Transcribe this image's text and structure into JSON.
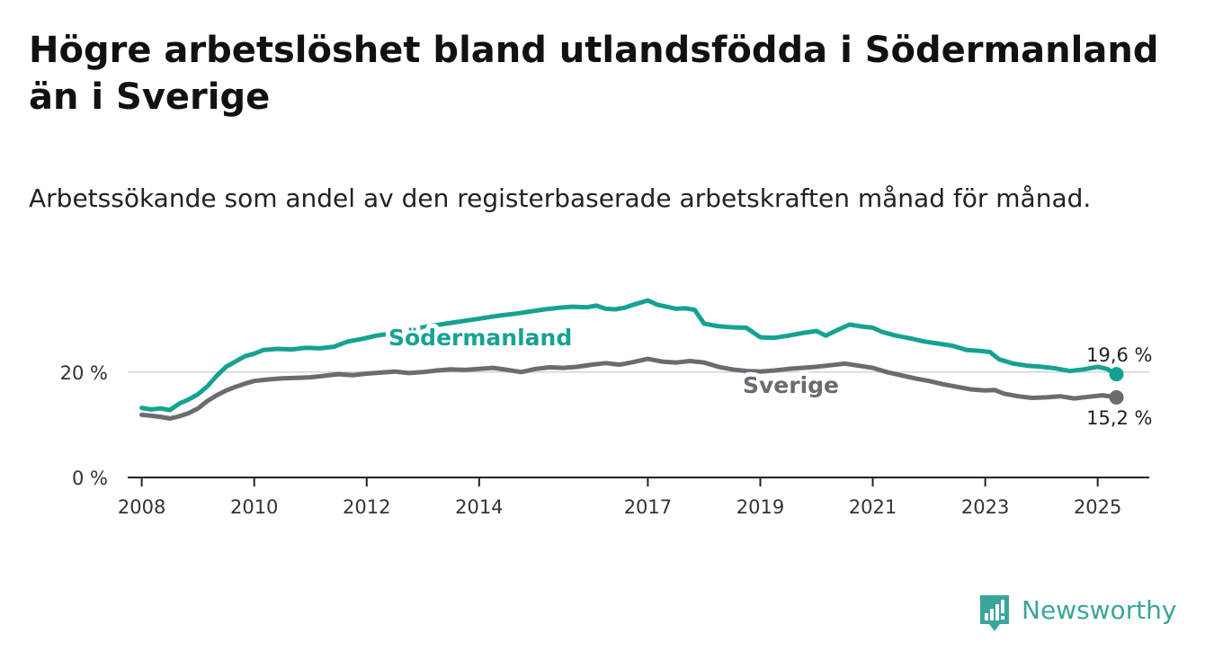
{
  "title": "Högre arbetslöshet bland utlandsfödda i Södermanland än i Sverige",
  "subtitle": "Arbetssökande som andel av den registerbaserade arbetskraften månad för månad.",
  "brand": {
    "name": "Newsworthy",
    "color": "#3aa59a",
    "icon": "bar-chart-exclamation-icon"
  },
  "chart_data": {
    "type": "line",
    "title": "",
    "xlabel": "",
    "ylabel": "",
    "x_ticks": [
      "2008",
      "2010",
      "2012",
      "2014",
      "2017",
      "2019",
      "2021",
      "2023",
      "2025"
    ],
    "y_ticks": [
      {
        "value": 0,
        "label": "0 %"
      },
      {
        "value": 20,
        "label": "20 %"
      }
    ],
    "ylim": [
      0,
      36
    ],
    "xlim": [
      "2007-10",
      "2025-12"
    ],
    "grid": "horizontal at 20 %",
    "series": [
      {
        "name": "Södermanland",
        "color": "#16a293",
        "end_label": "19,6 %",
        "points": [
          [
            "2008-01",
            13.2
          ],
          [
            "2008-03",
            12.9
          ],
          [
            "2008-05",
            13.1
          ],
          [
            "2008-07",
            12.8
          ],
          [
            "2008-09",
            14.0
          ],
          [
            "2008-11",
            14.8
          ],
          [
            "2009-01",
            15.8
          ],
          [
            "2009-03",
            17.3
          ],
          [
            "2009-05",
            19.3
          ],
          [
            "2009-07",
            21.0
          ],
          [
            "2009-09",
            22.0
          ],
          [
            "2009-11",
            23.0
          ],
          [
            "2010-01",
            23.5
          ],
          [
            "2010-03",
            24.2
          ],
          [
            "2010-06",
            24.4
          ],
          [
            "2010-09",
            24.3
          ],
          [
            "2010-12",
            24.6
          ],
          [
            "2011-03",
            24.5
          ],
          [
            "2011-06",
            24.8
          ],
          [
            "2011-09",
            25.8
          ],
          [
            "2011-12",
            26.3
          ],
          [
            "2012-03",
            26.9
          ],
          [
            "2012-06",
            27.3
          ],
          [
            "2012-09",
            27.8
          ],
          [
            "2012-12",
            28.3
          ],
          [
            "2013-03",
            28.8
          ],
          [
            "2013-06",
            29.2
          ],
          [
            "2013-09",
            29.6
          ],
          [
            "2013-12",
            30.0
          ],
          [
            "2014-03",
            30.4
          ],
          [
            "2014-06",
            30.8
          ],
          [
            "2014-09",
            31.1
          ],
          [
            "2014-12",
            31.5
          ],
          [
            "2015-03",
            31.9
          ],
          [
            "2015-06",
            32.2
          ],
          [
            "2015-09",
            32.4
          ],
          [
            "2015-12",
            32.3
          ],
          [
            "2016-02",
            32.6
          ],
          [
            "2016-04",
            32.0
          ],
          [
            "2016-06",
            31.9
          ],
          [
            "2016-08",
            32.2
          ],
          [
            "2016-10",
            32.8
          ],
          [
            "2017-01",
            33.6
          ],
          [
            "2017-03",
            32.8
          ],
          [
            "2017-05",
            32.4
          ],
          [
            "2017-07",
            32.0
          ],
          [
            "2017-09",
            32.1
          ],
          [
            "2017-11",
            31.8
          ],
          [
            "2018-01",
            29.2
          ],
          [
            "2018-04",
            28.7
          ],
          [
            "2018-07",
            28.5
          ],
          [
            "2018-10",
            28.4
          ],
          [
            "2019-01",
            26.6
          ],
          [
            "2019-04",
            26.5
          ],
          [
            "2019-07",
            26.9
          ],
          [
            "2019-10",
            27.4
          ],
          [
            "2020-01",
            27.8
          ],
          [
            "2020-03",
            26.9
          ],
          [
            "2020-05",
            27.8
          ],
          [
            "2020-08",
            29.0
          ],
          [
            "2020-11",
            28.6
          ],
          [
            "2021-01",
            28.4
          ],
          [
            "2021-03",
            27.6
          ],
          [
            "2021-06",
            26.9
          ],
          [
            "2021-09",
            26.4
          ],
          [
            "2021-12",
            25.8
          ],
          [
            "2022-03",
            25.4
          ],
          [
            "2022-06",
            25.0
          ],
          [
            "2022-09",
            24.2
          ],
          [
            "2022-12",
            24.0
          ],
          [
            "2023-02",
            23.8
          ],
          [
            "2023-04",
            22.4
          ],
          [
            "2023-07",
            21.6
          ],
          [
            "2023-10",
            21.2
          ],
          [
            "2024-01",
            21.0
          ],
          [
            "2024-04",
            20.7
          ],
          [
            "2024-07",
            20.2
          ],
          [
            "2024-10",
            20.5
          ],
          [
            "2025-01",
            21.0
          ],
          [
            "2025-03",
            20.6
          ],
          [
            "2025-05",
            19.6
          ]
        ]
      },
      {
        "name": "Sverige",
        "color": "#6b6b70",
        "end_label": "15,2 %",
        "points": [
          [
            "2008-01",
            11.9
          ],
          [
            "2008-03",
            11.7
          ],
          [
            "2008-05",
            11.5
          ],
          [
            "2008-07",
            11.2
          ],
          [
            "2008-09",
            11.6
          ],
          [
            "2008-11",
            12.2
          ],
          [
            "2009-01",
            13.1
          ],
          [
            "2009-03",
            14.5
          ],
          [
            "2009-05",
            15.6
          ],
          [
            "2009-07",
            16.5
          ],
          [
            "2009-09",
            17.2
          ],
          [
            "2009-11",
            17.8
          ],
          [
            "2010-01",
            18.3
          ],
          [
            "2010-04",
            18.6
          ],
          [
            "2010-07",
            18.8
          ],
          [
            "2010-10",
            18.9
          ],
          [
            "2011-01",
            19.0
          ],
          [
            "2011-04",
            19.3
          ],
          [
            "2011-07",
            19.6
          ],
          [
            "2011-10",
            19.4
          ],
          [
            "2012-01",
            19.7
          ],
          [
            "2012-04",
            19.9
          ],
          [
            "2012-07",
            20.1
          ],
          [
            "2012-10",
            19.8
          ],
          [
            "2013-01",
            20.0
          ],
          [
            "2013-04",
            20.3
          ],
          [
            "2013-07",
            20.5
          ],
          [
            "2013-10",
            20.4
          ],
          [
            "2014-01",
            20.6
          ],
          [
            "2014-04",
            20.8
          ],
          [
            "2014-07",
            20.4
          ],
          [
            "2014-10",
            20.0
          ],
          [
            "2015-01",
            20.6
          ],
          [
            "2015-04",
            20.9
          ],
          [
            "2015-07",
            20.8
          ],
          [
            "2015-10",
            21.0
          ],
          [
            "2016-01",
            21.4
          ],
          [
            "2016-04",
            21.7
          ],
          [
            "2016-07",
            21.4
          ],
          [
            "2016-10",
            21.9
          ],
          [
            "2017-01",
            22.5
          ],
          [
            "2017-04",
            22.0
          ],
          [
            "2017-07",
            21.8
          ],
          [
            "2017-10",
            22.1
          ],
          [
            "2018-01",
            21.8
          ],
          [
            "2018-04",
            21.0
          ],
          [
            "2018-07",
            20.5
          ],
          [
            "2018-10",
            20.2
          ],
          [
            "2019-01",
            20.1
          ],
          [
            "2019-04",
            20.3
          ],
          [
            "2019-07",
            20.6
          ],
          [
            "2019-10",
            20.8
          ],
          [
            "2020-01",
            21.0
          ],
          [
            "2020-04",
            21.3
          ],
          [
            "2020-07",
            21.6
          ],
          [
            "2020-10",
            21.2
          ],
          [
            "2021-01",
            20.8
          ],
          [
            "2021-04",
            20.0
          ],
          [
            "2021-07",
            19.4
          ],
          [
            "2021-10",
            18.8
          ],
          [
            "2022-01",
            18.3
          ],
          [
            "2022-04",
            17.7
          ],
          [
            "2022-07",
            17.2
          ],
          [
            "2022-10",
            16.7
          ],
          [
            "2023-01",
            16.5
          ],
          [
            "2023-03",
            16.6
          ],
          [
            "2023-05",
            15.9
          ],
          [
            "2023-08",
            15.4
          ],
          [
            "2023-11",
            15.1
          ],
          [
            "2024-02",
            15.2
          ],
          [
            "2024-05",
            15.4
          ],
          [
            "2024-08",
            15.0
          ],
          [
            "2024-11",
            15.3
          ],
          [
            "2025-02",
            15.6
          ],
          [
            "2025-05",
            15.2
          ]
        ]
      }
    ]
  }
}
